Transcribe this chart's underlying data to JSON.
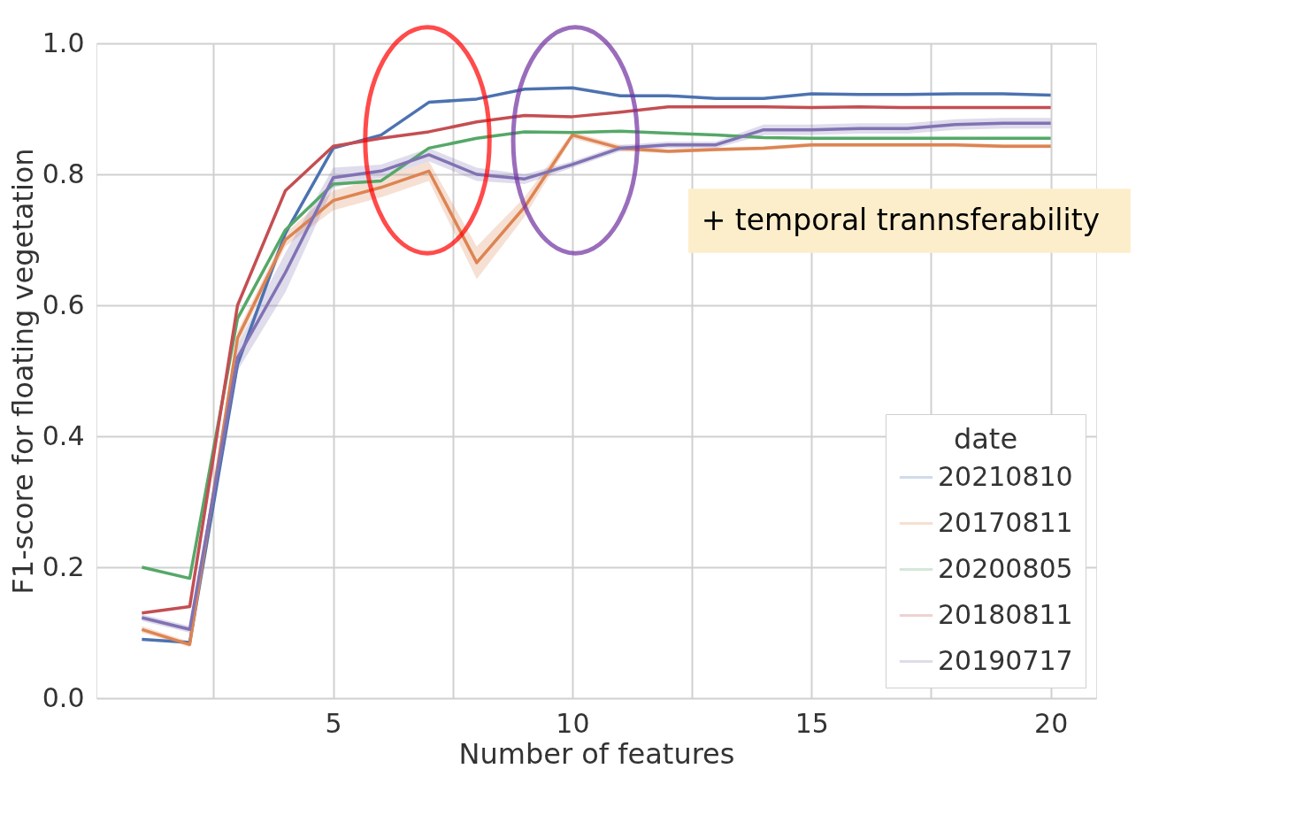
{
  "chart_data": {
    "type": "line",
    "xlabel": "Number of features",
    "ylabel": "F1-score for floating vegetation",
    "legend_title": "date",
    "x": [
      1,
      2,
      3,
      4,
      5,
      6,
      7,
      8,
      9,
      10,
      11,
      12,
      13,
      14,
      15,
      16,
      17,
      18,
      19,
      20
    ],
    "xlim": [
      0.05,
      20.95
    ],
    "xticks": [
      {
        "value": 2.5,
        "label": null
      },
      5,
      {
        "value": 7.5,
        "label": null
      },
      10,
      {
        "value": 12.5,
        "label": null
      },
      15,
      {
        "value": 17.5,
        "label": null
      },
      20
    ],
    "ylim": [
      0,
      1
    ],
    "yticks": [
      {
        "value": 0,
        "label": "0.0"
      },
      0.2,
      0.4,
      0.6,
      0.8,
      {
        "value": 1,
        "label": "1.0"
      }
    ],
    "grid": true,
    "legend": "bottom right",
    "line_style": "solid",
    "marker": "none",
    "annotations": [
      "+ temporal trannsferability"
    ],
    "series": [
      {
        "name": "20210810",
        "color": "#4c72b0",
        "values": [
          0.09,
          0.085,
          0.51,
          0.71,
          0.84,
          0.86,
          0.91,
          0.915,
          0.93,
          0.932,
          0.92,
          0.92,
          0.916,
          0.916,
          0.923,
          0.922,
          0.922,
          0.923,
          0.923,
          0.921
        ]
      },
      {
        "name": "20170811",
        "color": "#dd8452",
        "values": [
          0.105,
          0.082,
          0.55,
          0.7,
          0.76,
          0.78,
          0.805,
          0.665,
          0.75,
          0.86,
          0.84,
          0.835,
          0.838,
          0.84,
          0.845,
          0.845,
          0.845,
          0.845,
          0.843,
          0.843
        ],
        "lower": [
          0.1,
          0.078,
          0.54,
          0.69,
          0.745,
          0.765,
          0.79,
          0.64,
          0.735,
          0.855,
          0.835,
          0.832,
          0.835,
          0.837,
          0.842,
          0.842,
          0.842,
          0.842,
          0.84,
          0.84
        ],
        "upper": [
          0.11,
          0.086,
          0.56,
          0.71,
          0.775,
          0.795,
          0.82,
          0.69,
          0.765,
          0.865,
          0.845,
          0.838,
          0.841,
          0.843,
          0.848,
          0.848,
          0.848,
          0.848,
          0.846,
          0.846
        ]
      },
      {
        "name": "20200805",
        "color": "#55a868",
        "values": [
          0.2,
          0.183,
          0.58,
          0.715,
          0.785,
          0.79,
          0.84,
          0.855,
          0.865,
          0.864,
          0.866,
          0.863,
          0.86,
          0.856,
          0.855,
          0.855,
          0.855,
          0.855,
          0.855,
          0.855
        ]
      },
      {
        "name": "20180811",
        "color": "#c44e52",
        "values": [
          0.13,
          0.14,
          0.6,
          0.775,
          0.843,
          0.855,
          0.865,
          0.88,
          0.89,
          0.888,
          0.895,
          0.903,
          0.903,
          0.903,
          0.902,
          0.903,
          0.902,
          0.902,
          0.902,
          0.902
        ]
      },
      {
        "name": "20190717",
        "color": "#8172b3",
        "values": [
          0.123,
          0.105,
          0.52,
          0.65,
          0.795,
          0.805,
          0.83,
          0.8,
          0.793,
          0.815,
          0.84,
          0.845,
          0.845,
          0.868,
          0.868,
          0.87,
          0.87,
          0.876,
          0.878,
          0.878
        ],
        "lower": [
          0.118,
          0.1,
          0.5,
          0.62,
          0.78,
          0.795,
          0.82,
          0.79,
          0.785,
          0.81,
          0.835,
          0.84,
          0.84,
          0.86,
          0.86,
          0.862,
          0.862,
          0.868,
          0.87,
          0.87
        ],
        "upper": [
          0.128,
          0.11,
          0.54,
          0.68,
          0.81,
          0.815,
          0.84,
          0.81,
          0.8,
          0.82,
          0.845,
          0.85,
          0.85,
          0.876,
          0.876,
          0.878,
          0.878,
          0.884,
          0.886,
          0.886
        ]
      }
    ]
  }
}
